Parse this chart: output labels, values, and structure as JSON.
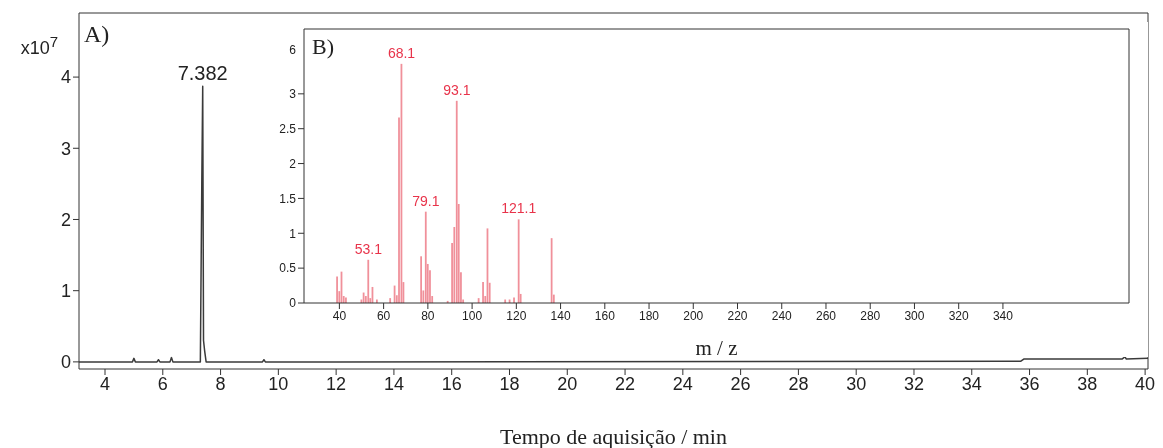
{
  "chart_data": [
    {
      "type": "line",
      "xlabel": "Tempo de aquisição / min",
      "xlim": [
        3.1,
        40.1
      ],
      "xticks": [
        4,
        6,
        8,
        10,
        12,
        14,
        16,
        18,
        20,
        22,
        24,
        26,
        28,
        30,
        32,
        34,
        36,
        38,
        40
      ],
      "ylim": [
        -0.1,
        4.9
      ],
      "yticks": [
        0,
        1,
        2,
        3,
        4
      ],
      "series": [
        {
          "color": "#3a3a3a",
          "x": [
            3.1,
            4.95,
            5.0,
            5.05,
            5.8,
            5.85,
            5.9,
            6.25,
            6.3,
            6.35,
            7.3,
            7.35,
            7.382,
            7.41,
            7.45,
            7.5,
            9.45,
            9.5,
            9.55,
            12,
            35.7,
            35.8,
            39.2,
            39.3,
            39.35,
            40.1
          ],
          "values": [
            0,
            0,
            0.05,
            0,
            0,
            0.03,
            0,
            0,
            0.06,
            0,
            0,
            2.5,
            3.87,
            0.3,
            0.15,
            0,
            0,
            0.03,
            0,
            0,
            0.01,
            0.04,
            0.04,
            0.07,
            0.04,
            0.05
          ]
        }
      ],
      "ylabel": "x10$^{7}$",
      "annotations": [
        "A)",
        {
          "text": "7.382",
          "x": 7.382,
          "y": 3.87
        }
      ]
    },
    {
      "type": "bar",
      "xlabel": "m / z",
      "xlim": [
        24,
        397
      ],
      "xticks": [
        40,
        60,
        80,
        100,
        120,
        140,
        160,
        180,
        200,
        220,
        240,
        260,
        280,
        300,
        320,
        340
      ],
      "ylim": [
        0,
        3.93
      ],
      "yticks": [
        0,
        0.5,
        1,
        1.5,
        2,
        2.5,
        3
      ],
      "ylabel": "6",
      "x": [
        39,
        40,
        41,
        42,
        43,
        50,
        51,
        52,
        53.1,
        54,
        55,
        57,
        63,
        65,
        66,
        67,
        68.1,
        69,
        77,
        78,
        79.1,
        80,
        81,
        82,
        89,
        91,
        92,
        93.1,
        94,
        95,
        96,
        103,
        105,
        106,
        107,
        108,
        115,
        117,
        119,
        121.1,
        122,
        136,
        137
      ],
      "values": [
        0.38,
        0.17,
        0.45,
        0.1,
        0.08,
        0.05,
        0.15,
        0.1,
        0.62,
        0.07,
        0.23,
        0.05,
        0.07,
        0.25,
        0.11,
        2.66,
        3.43,
        0.3,
        0.67,
        0.18,
        1.31,
        0.56,
        0.47,
        0.1,
        0.03,
        0.86,
        1.09,
        2.9,
        1.42,
        0.44,
        0.05,
        0.07,
        0.3,
        0.1,
        1.07,
        0.29,
        0.05,
        0.05,
        0.08,
        1.2,
        0.13,
        0.93,
        0.12
      ],
      "color": "#f0909a",
      "annotations": [
        "B)",
        {
          "text": "53.1",
          "x": 53.1,
          "y": 0.62
        },
        {
          "text": "68.1",
          "x": 68.1,
          "y": 3.43
        },
        {
          "text": "79.1",
          "x": 79.1,
          "y": 1.31
        },
        {
          "text": "93.1",
          "x": 93.1,
          "y": 2.9
        },
        {
          "text": "121.1",
          "x": 121.1,
          "y": 1.2
        }
      ]
    }
  ]
}
